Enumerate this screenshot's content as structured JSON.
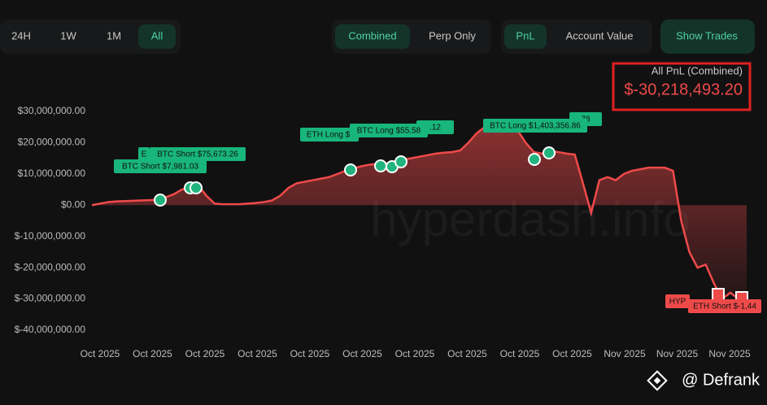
{
  "toolbar": {
    "range": [
      "24H",
      "1W",
      "1M",
      "All"
    ],
    "mode": [
      "Combined",
      "Perp Only"
    ],
    "metric": [
      "PnL",
      "Account Value"
    ],
    "toggle": "Show Trades"
  },
  "header": {
    "label": "All PnL (Combined)",
    "value": "$-30,218,493.20"
  },
  "watermark": "hyperdash.info",
  "footer": "@ Defrank",
  "chart_data": {
    "type": "area",
    "color": "#ef4a4a",
    "categories": [
      null,
      null,
      null,
      null,
      null,
      null,
      null,
      null,
      null,
      null,
      null,
      null,
      null,
      null,
      null,
      null,
      null,
      null,
      null,
      null,
      null,
      null,
      null,
      null,
      null,
      null,
      null,
      null,
      null,
      null,
      null,
      null,
      null,
      null,
      null,
      null,
      null,
      null,
      null,
      null,
      null,
      null,
      null,
      null,
      null,
      null,
      null,
      null,
      null,
      null,
      null,
      null,
      null,
      null,
      null,
      null,
      null,
      null,
      null,
      null,
      null,
      null,
      null,
      null,
      null,
      null,
      null,
      null,
      null,
      null,
      null,
      null,
      null,
      null,
      null,
      null,
      null,
      null,
      null,
      null,
      null
    ],
    "values": [
      0,
      500000,
      1000000,
      1200000,
      1300000,
      1400000,
      1500000,
      1600000,
      1700000,
      2500000,
      3500000,
      5000000,
      5800000,
      6300000,
      3000000,
      500000,
      300000,
      300000,
      300000,
      500000,
      700000,
      1000000,
      1500000,
      3000000,
      5500000,
      7000000,
      7500000,
      8000000,
      8500000,
      9000000,
      10000000,
      11000000,
      11800000,
      12500000,
      13000000,
      13200000,
      13400000,
      13800000,
      14500000,
      15000000,
      15500000,
      16000000,
      16500000,
      16800000,
      17000000,
      17500000,
      20000000,
      23000000,
      25000000,
      25500000,
      25300000,
      25000000,
      24000000,
      20000000,
      17000000,
      16500000,
      17200000,
      17000000,
      16500000,
      16200000,
      7000000,
      -2500000,
      8000000,
      9000000,
      8000000,
      10000000,
      11000000,
      11500000,
      12000000,
      12000000,
      12000000,
      11000000,
      -5000000,
      -15000000,
      -20000000,
      -19000000,
      -25000000,
      -30000000,
      -28000000,
      -30000000,
      -30218493.2
    ],
    "ylim": [
      -40000000,
      30000000
    ],
    "yticks": [
      {
        "value": 30000000,
        "label": "$30,000,000.00"
      },
      {
        "value": 20000000,
        "label": "$20,000,000.00"
      },
      {
        "value": 10000000,
        "label": "$10,000,000.00"
      },
      {
        "value": 0,
        "label": "$0.00"
      },
      {
        "value": -10000000,
        "label": "$-10,000,000.00"
      },
      {
        "value": -20000000,
        "label": "$-20,000,000.00"
      },
      {
        "value": -30000000,
        "label": "$-30,000,000.00"
      },
      {
        "value": -40000000,
        "label": "$-40,000,000.00"
      }
    ],
    "xtick_labels": [
      "Oct 2025",
      "Oct 2025",
      "Oct 2025",
      "Oct 2025",
      "Oct 2025",
      "Oct 2025",
      "Oct 2025",
      "Oct 2025",
      "Oct 2025",
      "Oct 2025",
      "Nov 2025",
      "Nov 2025",
      "Nov 2025"
    ],
    "annotations": [
      "BTC Short $7,981.03",
      "E",
      "BTC Short $75,673.26",
      "ETH Long $.",
      ".12",
      "BTC Long $55.58",
      "78",
      "BTC Long $1,403,356.86",
      "HYP",
      "ETH Short $-1,44"
    ]
  }
}
